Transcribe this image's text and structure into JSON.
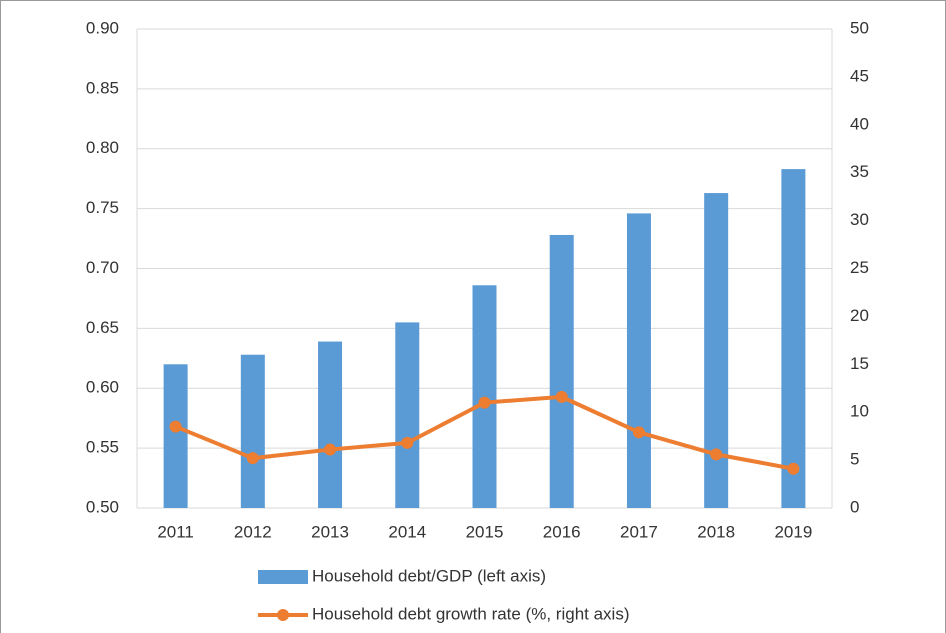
{
  "chart_data": {
    "type": "bar_line",
    "categories": [
      "2011",
      "2012",
      "2013",
      "2014",
      "2015",
      "2016",
      "2017",
      "2018",
      "2019"
    ],
    "series": [
      {
        "name": "Household debt/GDP (left axis)",
        "type": "bar",
        "color": "#5b9bd5",
        "axis": "y",
        "values": [
          0.62,
          0.628,
          0.639,
          0.655,
          0.686,
          0.728,
          0.746,
          0.763,
          0.783
        ]
      },
      {
        "name": "Household debt growth rate (%, right axis)",
        "type": "line",
        "color": "#ed7d31",
        "axis": "y2",
        "values": [
          8.5,
          5.2,
          6.1,
          6.8,
          11.0,
          11.6,
          7.9,
          5.6,
          4.1
        ]
      }
    ],
    "ylim": [
      0.5,
      0.9
    ],
    "yticks": [
      {
        "value": 0.5,
        "label": "0.50"
      },
      0.55,
      {
        "value": 0.6,
        "label": "0.60"
      },
      0.65,
      {
        "value": 0.7,
        "label": "0.70"
      },
      0.75,
      {
        "value": 0.8,
        "label": "0.80"
      },
      0.85,
      {
        "value": 0.9,
        "label": "0.90"
      }
    ],
    "y2lim": [
      0,
      50
    ],
    "y2ticks": [
      0,
      5,
      10,
      15,
      20,
      25,
      30,
      35,
      40,
      45,
      50
    ],
    "grid": true,
    "legend": "bottom"
  }
}
